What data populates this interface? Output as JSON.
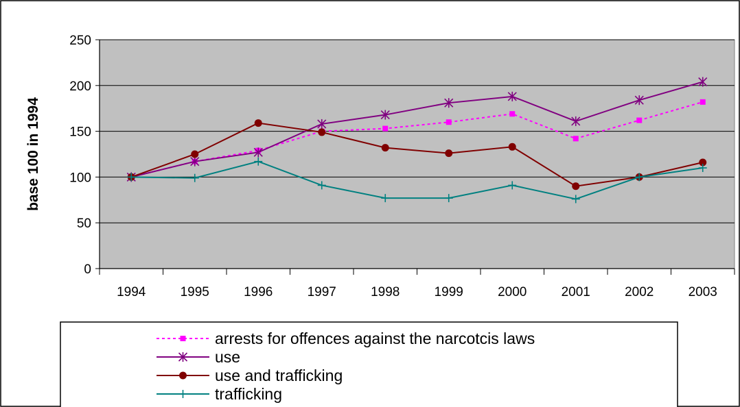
{
  "chart_data": {
    "type": "line",
    "title": "",
    "xlabel": "",
    "ylabel": "base 100 in 1994",
    "categories": [
      "1994",
      "1995",
      "1996",
      "1997",
      "1998",
      "1999",
      "2000",
      "2001",
      "2002",
      "2003"
    ],
    "ylim": [
      0,
      250
    ],
    "yticks": [
      "0",
      "50",
      "100",
      "150",
      "200",
      "250"
    ],
    "grid": true,
    "legend_position": "bottom",
    "plot_background": "#c0c0c0",
    "series": [
      {
        "name": "arrests for offences against the narcotcis laws",
        "values": [
          100,
          117,
          129,
          150,
          153,
          160,
          169,
          142,
          162,
          182
        ],
        "color": "#ff00ff",
        "marker": "square",
        "dash": "dotted"
      },
      {
        "name": "use",
        "values": [
          100,
          117,
          127,
          158,
          168,
          181,
          188,
          161,
          184,
          204
        ],
        "color": "#800080",
        "marker": "asterisk",
        "dash": "solid"
      },
      {
        "name": "use and trafficking",
        "values": [
          100,
          125,
          159,
          149,
          132,
          126,
          133,
          90,
          100,
          116
        ],
        "color": "#800000",
        "marker": "circle",
        "dash": "solid"
      },
      {
        "name": "trafficking",
        "values": [
          100,
          99,
          117,
          91,
          77,
          77,
          91,
          76,
          100,
          110
        ],
        "color": "#008080",
        "marker": "plus",
        "dash": "solid"
      }
    ]
  }
}
